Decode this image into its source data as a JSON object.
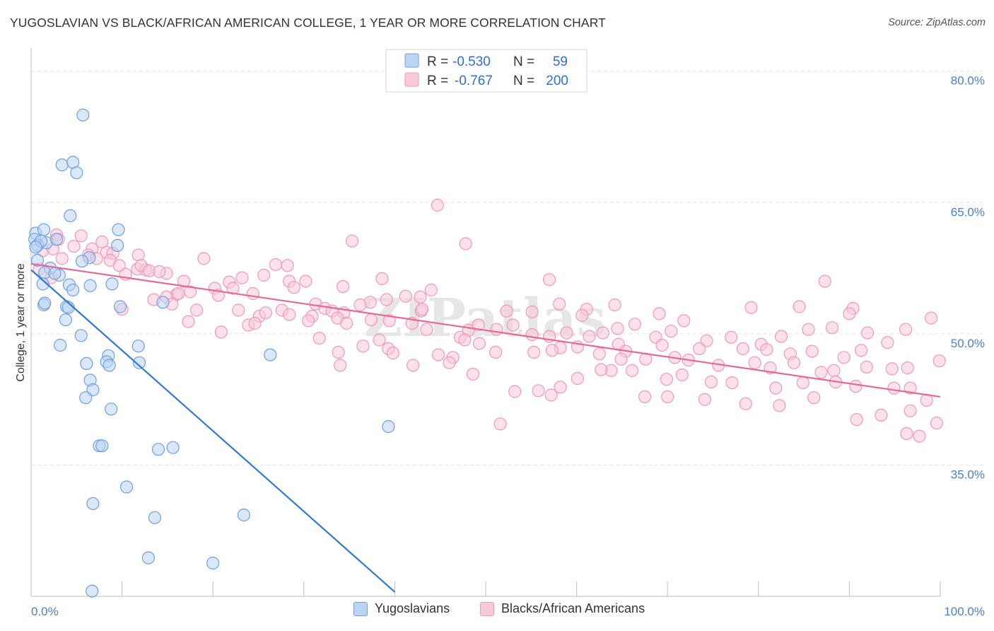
{
  "title": "YUGOSLAVIAN VS BLACK/AFRICAN AMERICAN COLLEGE, 1 YEAR OR MORE CORRELATION CHART",
  "source": "Source: ZipAtlas.com",
  "watermark": "ZIPatlas",
  "chart_data": {
    "type": "scatter",
    "ylabel": "College, 1 year or more",
    "xlim": [
      0,
      100
    ],
    "ylim": [
      20,
      82
    ],
    "x_ticks": [
      "0.0%",
      "100.0%"
    ],
    "y_ticks": [
      {
        "value": 80,
        "label": "80.0%"
      },
      {
        "value": 65,
        "label": "65.0%"
      },
      {
        "value": 50,
        "label": "50.0%"
      },
      {
        "value": 35,
        "label": "35.0%"
      }
    ],
    "grid": true,
    "legend_position": "top-center",
    "stats": [
      {
        "r_label": "R =",
        "r": "-0.530",
        "n_label": "N =",
        "n": "59",
        "color": "#a9c8f0"
      },
      {
        "r_label": "R =",
        "r": "-0.767",
        "n_label": "N =",
        "n": "200",
        "color": "#f6b4c8"
      }
    ],
    "series": [
      {
        "name": "Yugoslavians",
        "fill": "#bcd4f4",
        "stroke": "#6f9fe0",
        "line_color": "#2f78d6",
        "trend": {
          "x": [
            0,
            40
          ],
          "y": [
            57.3,
            20.5
          ]
        },
        "points": [
          [
            5.7,
            75
          ],
          [
            3.4,
            69.3
          ],
          [
            4.6,
            69.6
          ],
          [
            5.0,
            68.4
          ],
          [
            4.3,
            63.5
          ],
          [
            0.5,
            61.5
          ],
          [
            1.4,
            61.9
          ],
          [
            9.6,
            61.9
          ],
          [
            0.4,
            60.8
          ],
          [
            1.7,
            60.4
          ],
          [
            2.8,
            60.8
          ],
          [
            0.7,
            60.1
          ],
          [
            9.5,
            60.1
          ],
          [
            1.1,
            60.6
          ],
          [
            0.5,
            59.9
          ],
          [
            6.4,
            58.7
          ],
          [
            0.7,
            58.4
          ],
          [
            5.6,
            58.3
          ],
          [
            2.1,
            57.5
          ],
          [
            1.5,
            57.0
          ],
          [
            3.1,
            56.7
          ],
          [
            2.6,
            56.9
          ],
          [
            8.9,
            55.7
          ],
          [
            4.2,
            55.6
          ],
          [
            1.3,
            55.7
          ],
          [
            6.5,
            55.5
          ],
          [
            4.6,
            55.0
          ],
          [
            1.4,
            53.3
          ],
          [
            3.9,
            53.1
          ],
          [
            4.1,
            53.0
          ],
          [
            9.8,
            53.1
          ],
          [
            14.5,
            53.6
          ],
          [
            3.8,
            51.6
          ],
          [
            5.5,
            49.8
          ],
          [
            3.2,
            48.7
          ],
          [
            11.8,
            48.6
          ],
          [
            26.3,
            47.6
          ],
          [
            8.5,
            47.5
          ],
          [
            6.1,
            46.6
          ],
          [
            8.3,
            46.8
          ],
          [
            8.6,
            46.4
          ],
          [
            11.9,
            46.7
          ],
          [
            6.5,
            44.7
          ],
          [
            6.8,
            43.6
          ],
          [
            6.0,
            42.7
          ],
          [
            8.8,
            41.4
          ],
          [
            39.3,
            39.4
          ],
          [
            7.5,
            37.2
          ],
          [
            7.8,
            37.2
          ],
          [
            14.0,
            36.8
          ],
          [
            15.6,
            37.0
          ],
          [
            10.5,
            32.5
          ],
          [
            6.8,
            30.6
          ],
          [
            13.6,
            29.0
          ],
          [
            23.4,
            29.3
          ],
          [
            12.9,
            24.4
          ],
          [
            20.0,
            23.8
          ],
          [
            6.7,
            20.6
          ],
          [
            1.5,
            53.5
          ]
        ]
      },
      {
        "name": "Blacks/African Americans",
        "fill": "#f9c9d8",
        "stroke": "#ee9ab4",
        "line_color": "#e36a94",
        "trend": {
          "x": [
            0,
            100
          ],
          "y": [
            58.0,
            42.8
          ]
        },
        "points": [
          [
            44.7,
            64.7
          ],
          [
            2.8,
            61.3
          ],
          [
            5.5,
            61.2
          ],
          [
            3.0,
            60.8
          ],
          [
            7.8,
            60.5
          ],
          [
            11.8,
            59.0
          ],
          [
            35.3,
            60.6
          ],
          [
            47.8,
            60.3
          ],
          [
            1.3,
            59.5
          ],
          [
            2.4,
            59.7
          ],
          [
            4.7,
            60.0
          ],
          [
            6.7,
            59.7
          ],
          [
            6.3,
            59.0
          ],
          [
            8.3,
            59.3
          ],
          [
            9.0,
            59.2
          ],
          [
            7.2,
            58.6
          ],
          [
            8.7,
            58.4
          ],
          [
            9.7,
            57.8
          ],
          [
            11.7,
            57.4
          ],
          [
            12.6,
            57.3
          ],
          [
            14.9,
            56.9
          ],
          [
            10.4,
            56.8
          ],
          [
            12.1,
            57.8
          ],
          [
            13.0,
            57.2
          ],
          [
            14.1,
            57.1
          ],
          [
            19.0,
            58.6
          ],
          [
            26.9,
            57.9
          ],
          [
            28.2,
            57.8
          ],
          [
            3.4,
            58.6
          ],
          [
            0.9,
            57.4
          ],
          [
            2.2,
            56.4
          ],
          [
            16.8,
            56.0
          ],
          [
            21.8,
            55.9
          ],
          [
            23.2,
            56.4
          ],
          [
            28.4,
            56.0
          ],
          [
            30.2,
            56.0
          ],
          [
            34.3,
            55.4
          ],
          [
            38.6,
            56.3
          ],
          [
            44.0,
            55.0
          ],
          [
            57.0,
            56.2
          ],
          [
            87.3,
            56.0
          ],
          [
            20.2,
            55.2
          ],
          [
            22.2,
            55.2
          ],
          [
            25.6,
            56.7
          ],
          [
            28.9,
            55.3
          ],
          [
            16.0,
            54.5
          ],
          [
            14.9,
            54.2
          ],
          [
            13.5,
            53.9
          ],
          [
            15.5,
            53.4
          ],
          [
            16.2,
            54.6
          ],
          [
            17.5,
            54.8
          ],
          [
            20.6,
            54.4
          ],
          [
            24.4,
            54.6
          ],
          [
            37.3,
            53.6
          ],
          [
            39.1,
            53.9
          ],
          [
            41.2,
            54.3
          ],
          [
            42.8,
            54.2
          ],
          [
            36.2,
            53.3
          ],
          [
            58.1,
            53.4
          ],
          [
            61.1,
            52.8
          ],
          [
            64.2,
            53.3
          ],
          [
            79.2,
            53.0
          ],
          [
            90.4,
            52.9
          ],
          [
            84.5,
            53.1
          ],
          [
            18.2,
            52.7
          ],
          [
            22.8,
            52.7
          ],
          [
            25.1,
            52.0
          ],
          [
            25.8,
            52.4
          ],
          [
            27.6,
            52.7
          ],
          [
            30.9,
            52.0
          ],
          [
            31.3,
            53.4
          ],
          [
            32.3,
            52.9
          ],
          [
            33.1,
            52.6
          ],
          [
            34.4,
            52.4
          ],
          [
            42.9,
            52.6
          ],
          [
            43.0,
            52.8
          ],
          [
            52.3,
            52.6
          ],
          [
            55.1,
            52.5
          ],
          [
            60.6,
            52.1
          ],
          [
            69.1,
            52.3
          ],
          [
            71.8,
            51.5
          ],
          [
            90.0,
            52.3
          ],
          [
            99.0,
            51.8
          ],
          [
            10.0,
            52.8
          ],
          [
            17.3,
            51.4
          ],
          [
            23.9,
            51.0
          ],
          [
            28.4,
            52.2
          ],
          [
            30.5,
            51.5
          ],
          [
            33.7,
            51.8
          ],
          [
            34.7,
            51.2
          ],
          [
            37.4,
            51.6
          ],
          [
            39.4,
            51.5
          ],
          [
            41.9,
            51.2
          ],
          [
            43.5,
            50.5
          ],
          [
            47.2,
            49.6
          ],
          [
            48.1,
            50.4
          ],
          [
            49.2,
            51.0
          ],
          [
            51.2,
            50.5
          ],
          [
            53.0,
            51.0
          ],
          [
            55.1,
            49.9
          ],
          [
            57.0,
            49.7
          ],
          [
            58.9,
            50.1
          ],
          [
            61.4,
            49.7
          ],
          [
            62.9,
            50.1
          ],
          [
            64.5,
            50.6
          ],
          [
            66.4,
            51.1
          ],
          [
            68.7,
            49.6
          ],
          [
            70.4,
            50.3
          ],
          [
            74.3,
            49.2
          ],
          [
            77.0,
            49.6
          ],
          [
            80.3,
            48.8
          ],
          [
            82.5,
            49.7
          ],
          [
            85.5,
            50.5
          ],
          [
            88.1,
            50.7
          ],
          [
            92.0,
            50.1
          ],
          [
            94.2,
            49.0
          ],
          [
            96.2,
            50.5
          ],
          [
            20.9,
            50.2
          ],
          [
            24.6,
            51.2
          ],
          [
            31.7,
            49.5
          ],
          [
            38.3,
            49.3
          ],
          [
            47.7,
            49.3
          ],
          [
            49.3,
            48.9
          ],
          [
            58.2,
            48.4
          ],
          [
            60.1,
            48.5
          ],
          [
            64.6,
            48.8
          ],
          [
            65.4,
            48.0
          ],
          [
            69.4,
            48.7
          ],
          [
            73.5,
            48.3
          ],
          [
            78.3,
            48.3
          ],
          [
            80.9,
            48.2
          ],
          [
            83.5,
            47.7
          ],
          [
            85.9,
            48.0
          ],
          [
            89.4,
            47.3
          ],
          [
            91.3,
            48.1
          ],
          [
            36.5,
            48.6
          ],
          [
            39.3,
            48.3
          ],
          [
            44.8,
            47.6
          ],
          [
            46.4,
            47.3
          ],
          [
            51.1,
            47.9
          ],
          [
            55.3,
            47.9
          ],
          [
            57.3,
            48.1
          ],
          [
            62.5,
            47.7
          ],
          [
            64.9,
            47.1
          ],
          [
            67.6,
            47.1
          ],
          [
            70.8,
            47.3
          ],
          [
            72.3,
            47.0
          ],
          [
            75.6,
            46.4
          ],
          [
            79.6,
            46.7
          ],
          [
            81.3,
            46.1
          ],
          [
            83.9,
            46.7
          ],
          [
            86.9,
            45.6
          ],
          [
            88.3,
            45.8
          ],
          [
            91.9,
            46.2
          ],
          [
            94.7,
            46.0
          ],
          [
            96.4,
            46.1
          ],
          [
            99.9,
            46.9
          ],
          [
            63.8,
            45.8
          ],
          [
            66.1,
            45.8
          ],
          [
            62.7,
            45.9
          ],
          [
            69.9,
            44.8
          ],
          [
            71.6,
            45.3
          ],
          [
            74.8,
            44.5
          ],
          [
            77.1,
            44.4
          ],
          [
            81.9,
            43.8
          ],
          [
            84.9,
            44.4
          ],
          [
            88.5,
            44.5
          ],
          [
            90.7,
            44.0
          ],
          [
            94.9,
            43.8
          ],
          [
            96.7,
            43.8
          ],
          [
            60.1,
            44.9
          ],
          [
            58.2,
            43.9
          ],
          [
            57.2,
            43.0
          ],
          [
            55.8,
            43.5
          ],
          [
            53.2,
            43.4
          ],
          [
            67.5,
            42.8
          ],
          [
            70.0,
            42.8
          ],
          [
            74.1,
            42.5
          ],
          [
            78.6,
            42.0
          ],
          [
            82.3,
            41.8
          ],
          [
            86.1,
            42.7
          ],
          [
            98.5,
            42.4
          ],
          [
            96.7,
            41.2
          ],
          [
            93.5,
            40.7
          ],
          [
            90.8,
            40.2
          ],
          [
            99.6,
            39.8
          ],
          [
            96.3,
            38.6
          ],
          [
            97.7,
            38.3
          ],
          [
            51.6,
            39.7
          ],
          [
            46.0,
            46.7
          ],
          [
            48.6,
            45.4
          ],
          [
            34.0,
            46.4
          ],
          [
            39.8,
            47.8
          ],
          [
            33.8,
            47.9
          ],
          [
            42.0,
            46.4
          ]
        ]
      }
    ]
  },
  "bottom_legend": [
    {
      "label": "Yugoslavians"
    },
    {
      "label": "Blacks/African Americans"
    }
  ]
}
